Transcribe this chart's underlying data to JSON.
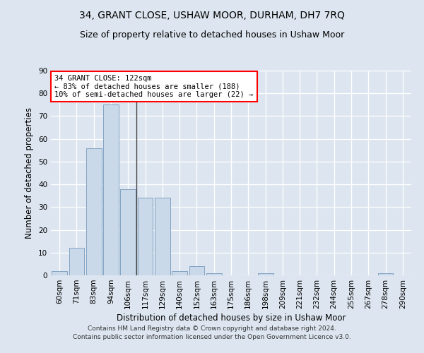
{
  "title": "34, GRANT CLOSE, USHAW MOOR, DURHAM, DH7 7RQ",
  "subtitle": "Size of property relative to detached houses in Ushaw Moor",
  "xlabel": "Distribution of detached houses by size in Ushaw Moor",
  "ylabel": "Number of detached properties",
  "bins": [
    "60sqm",
    "71sqm",
    "83sqm",
    "94sqm",
    "106sqm",
    "117sqm",
    "129sqm",
    "140sqm",
    "152sqm",
    "163sqm",
    "175sqm",
    "186sqm",
    "198sqm",
    "209sqm",
    "221sqm",
    "232sqm",
    "244sqm",
    "255sqm",
    "267sqm",
    "278sqm",
    "290sqm"
  ],
  "values": [
    2,
    12,
    56,
    75,
    38,
    34,
    34,
    2,
    4,
    1,
    0,
    0,
    1,
    0,
    0,
    0,
    0,
    0,
    0,
    1,
    0
  ],
  "bar_color": "#c9d9ea",
  "bar_edge_color": "#7aaan0",
  "annotation_text": "34 GRANT CLOSE: 122sqm\n← 83% of detached houses are smaller (188)\n10% of semi-detached houses are larger (22) →",
  "annotation_box_color": "white",
  "annotation_box_edge_color": "red",
  "vline_x": 4.5,
  "ylim": [
    0,
    90
  ],
  "yticks": [
    0,
    10,
    20,
    30,
    40,
    50,
    60,
    70,
    80,
    90
  ],
  "background_color": "#dde6f0",
  "plot_bg_color": "#dde6f0",
  "grid_color": "white",
  "footer": "Contains HM Land Registry data © Crown copyright and database right 2024.\nContains public sector information licensed under the Open Government Licence v3.0.",
  "title_fontsize": 10,
  "subtitle_fontsize": 9,
  "xlabel_fontsize": 8.5,
  "ylabel_fontsize": 8.5,
  "tick_fontsize": 7.5,
  "footer_fontsize": 6.5,
  "annot_fontsize": 7.5
}
